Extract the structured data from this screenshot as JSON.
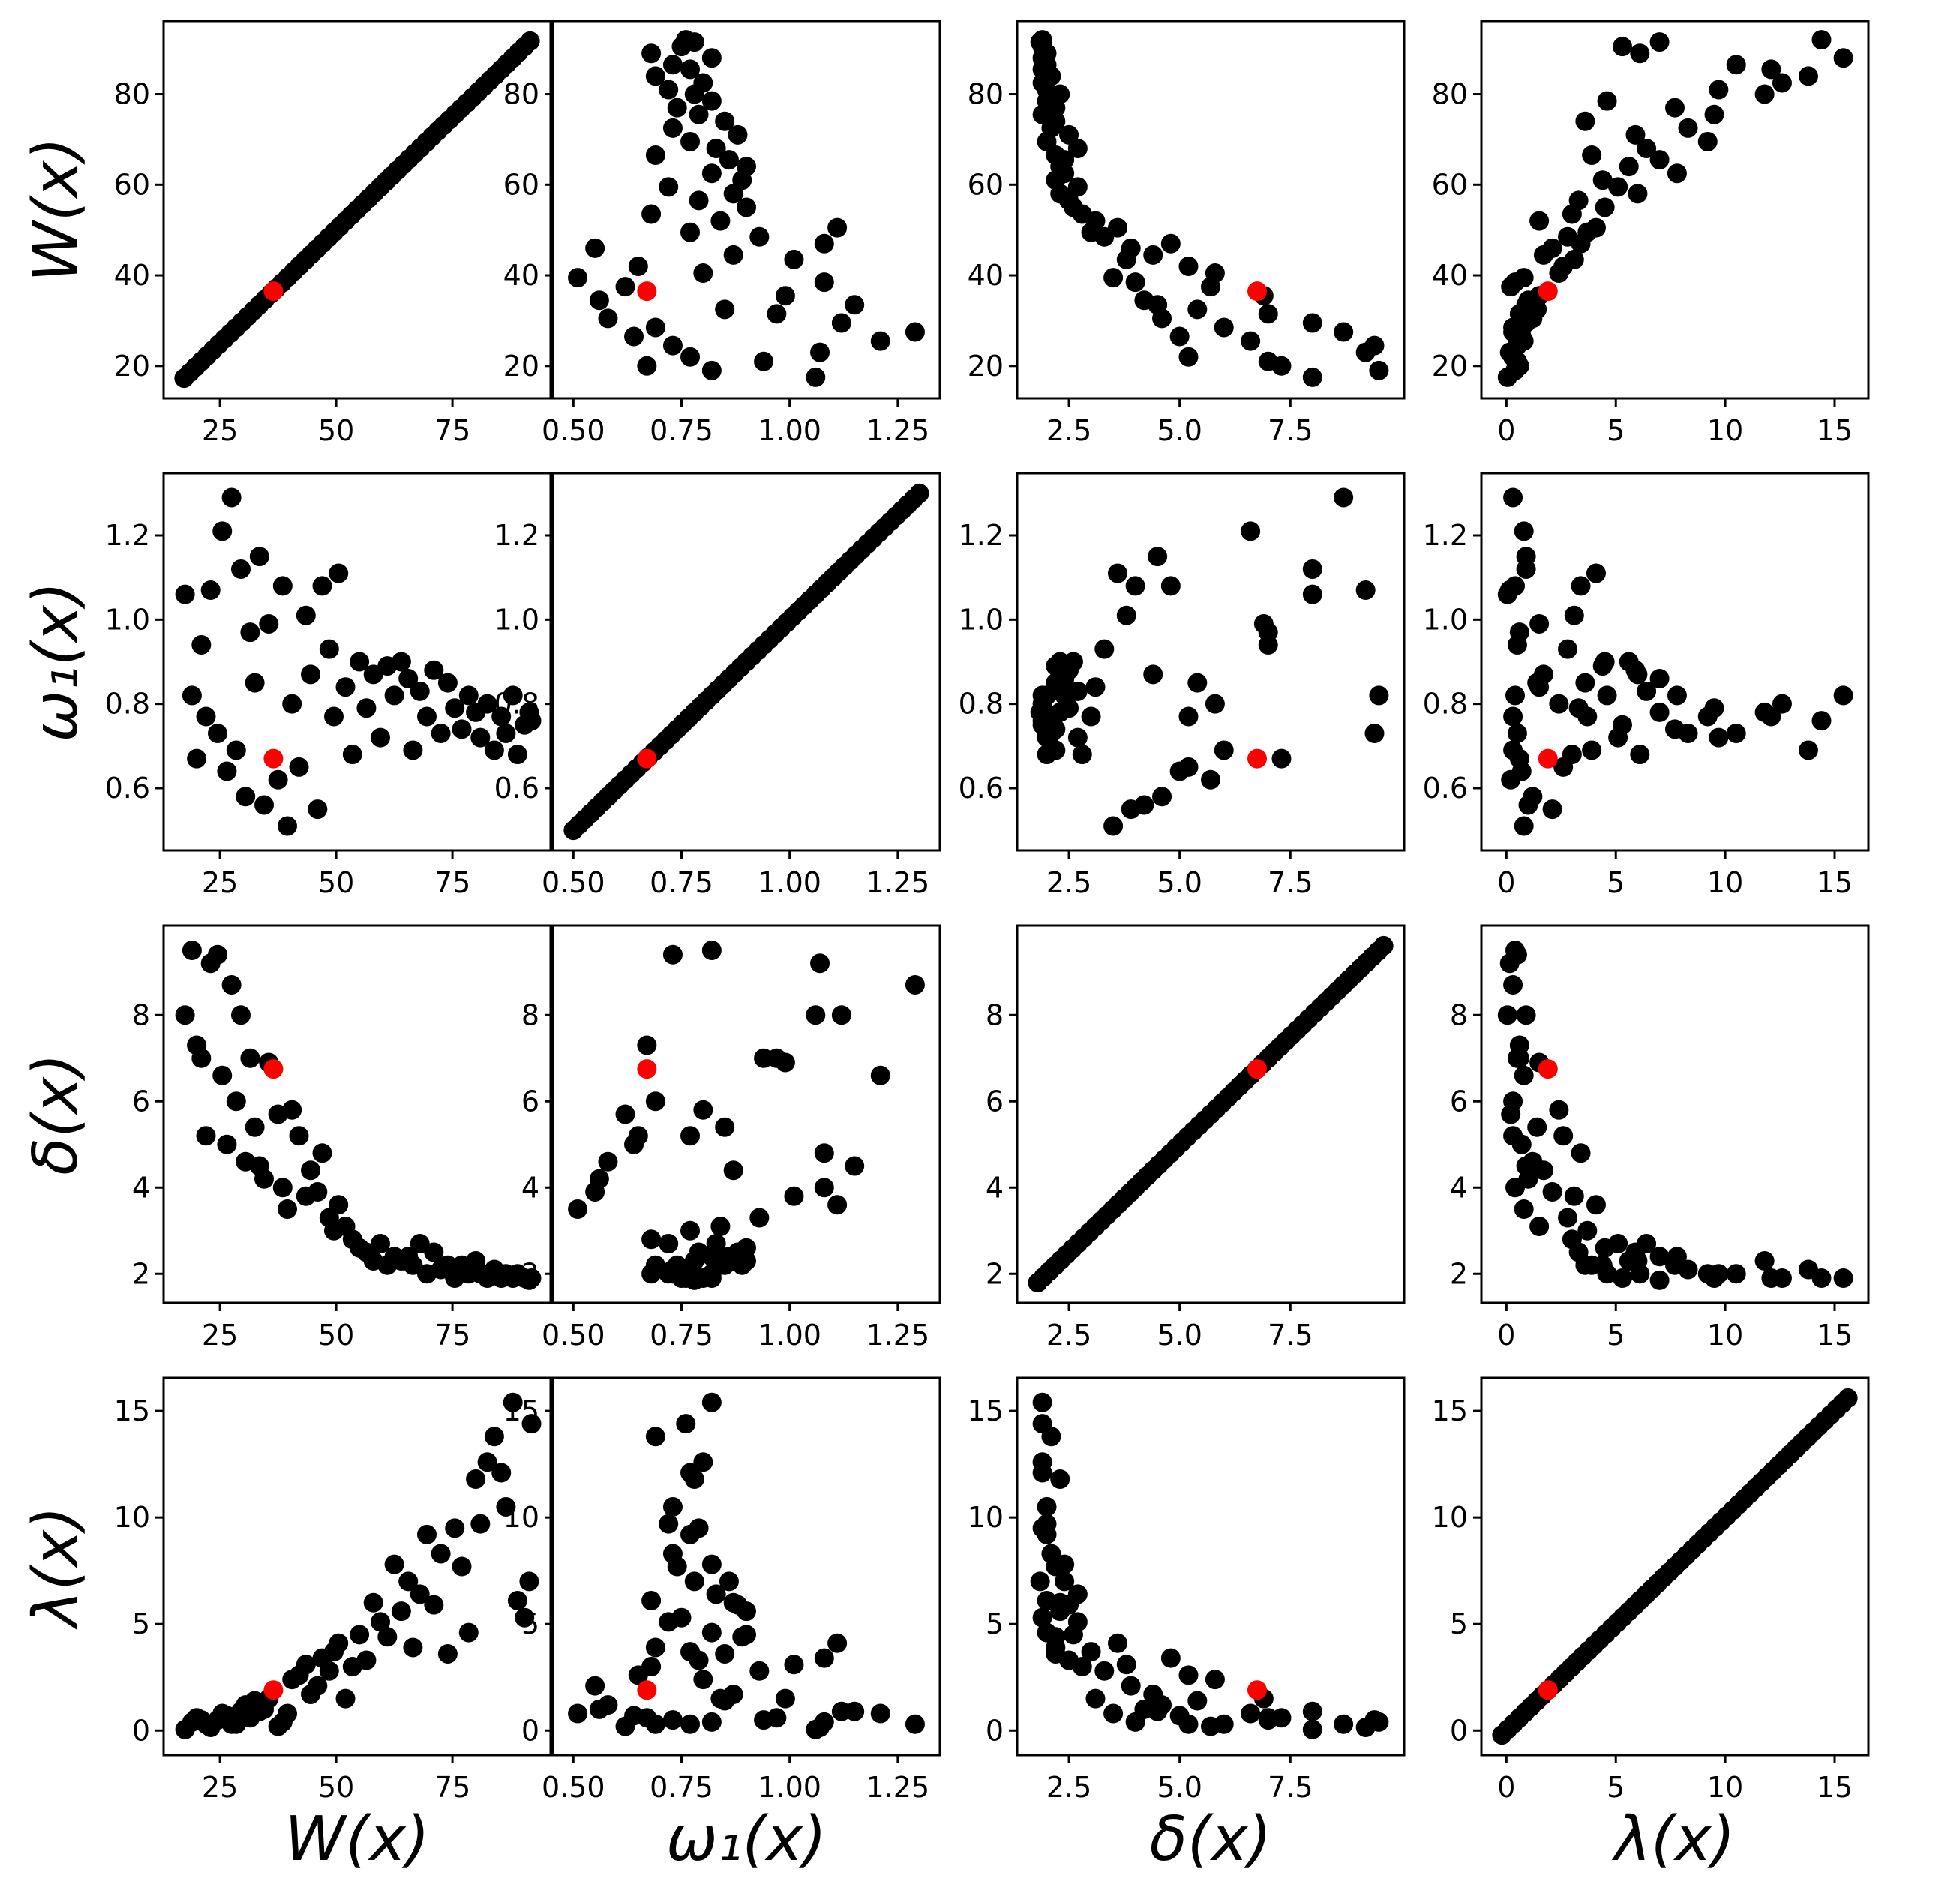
{
  "figure_title": "",
  "chart_data": {
    "type": "scatter",
    "layout": "4x4 pair plot (scatter matrix)",
    "variables": [
      {
        "key": "W",
        "label": "W(x)",
        "lim": [
          14.5,
          94.5
        ],
        "ticks": [
          20,
          40,
          60,
          80
        ],
        "tick_labels": [
          "20",
          "40",
          "60",
          "80"
        ],
        "x_ticks": [
          25,
          50,
          75
        ],
        "x_tick_labels": [
          "25",
          "50",
          "75"
        ]
      },
      {
        "key": "omega1",
        "label": "ω₁(x)",
        "lim": [
          0.47,
          1.33
        ],
        "ticks": [
          0.6,
          0.8,
          1.0,
          1.2
        ],
        "tick_labels": [
          "0.6",
          "0.8",
          "1.0",
          "1.2"
        ],
        "x_ticks": [
          0.5,
          0.75,
          1.0,
          1.25
        ],
        "x_tick_labels": [
          "0.50",
          "0.75",
          "1.00",
          "1.25"
        ]
      },
      {
        "key": "delta",
        "label": "δ(x)",
        "lim": [
          1.5,
          9.9
        ],
        "ticks": [
          2,
          4,
          6,
          8
        ],
        "tick_labels": [
          "2",
          "4",
          "6",
          "8"
        ],
        "x_ticks": [
          2.5,
          5.0,
          7.5
        ],
        "x_tick_labels": [
          "2.5",
          "5.0",
          "7.5"
        ]
      },
      {
        "key": "lambda",
        "label": "λ(x)",
        "lim": [
          -0.8,
          16.2
        ],
        "ticks": [
          0,
          5,
          10,
          15
        ],
        "tick_labels": [
          "0",
          "5",
          "10",
          "15"
        ],
        "x_ticks": [
          0,
          5,
          10,
          15
        ],
        "x_tick_labels": [
          "0",
          "5",
          "10",
          "15"
        ]
      }
    ],
    "series": [
      {
        "name": "samples",
        "color": "#000000"
      },
      {
        "name": "highlighted point",
        "color": "#ff0000",
        "point": {
          "W": 36.5,
          "omega1": 0.67,
          "delta": 6.75,
          "lambda": 1.9
        }
      }
    ],
    "samples": [
      [
        17.5,
        1.06,
        8.0,
        0.05
      ],
      [
        19.0,
        0.82,
        9.5,
        0.4
      ],
      [
        20.0,
        0.67,
        7.3,
        0.6
      ],
      [
        21.0,
        0.94,
        7.0,
        0.5
      ],
      [
        22.0,
        0.77,
        5.2,
        0.3
      ],
      [
        23.0,
        1.07,
        9.2,
        0.15
      ],
      [
        24.5,
        0.73,
        9.4,
        0.5
      ],
      [
        25.5,
        1.21,
        6.6,
        0.8
      ],
      [
        26.5,
        0.64,
        5.0,
        0.7
      ],
      [
        27.5,
        1.29,
        8.7,
        0.3
      ],
      [
        28.5,
        0.69,
        6.0,
        0.3
      ],
      [
        29.5,
        1.12,
        8.0,
        0.9
      ],
      [
        30.5,
        0.58,
        4.6,
        1.2
      ],
      [
        31.5,
        0.97,
        7.0,
        0.6
      ],
      [
        32.5,
        0.85,
        5.4,
        1.4
      ],
      [
        33.5,
        1.15,
        4.5,
        0.9
      ],
      [
        34.5,
        0.56,
        4.2,
        1.0
      ],
      [
        35.5,
        0.99,
        6.9,
        1.5
      ],
      [
        37.5,
        0.62,
        5.7,
        0.2
      ],
      [
        38.5,
        1.08,
        4.0,
        0.4
      ],
      [
        39.5,
        0.51,
        3.5,
        0.8
      ],
      [
        40.5,
        0.8,
        5.8,
        2.4
      ],
      [
        42.0,
        0.65,
        5.2,
        2.6
      ],
      [
        43.5,
        1.01,
        3.8,
        3.1
      ],
      [
        44.5,
        0.87,
        4.4,
        1.7
      ],
      [
        46.0,
        0.55,
        3.9,
        2.1
      ],
      [
        47.0,
        1.08,
        4.8,
        3.4
      ],
      [
        48.5,
        0.93,
        3.3,
        2.8
      ],
      [
        49.5,
        0.77,
        3.0,
        3.7
      ],
      [
        50.5,
        1.11,
        3.6,
        4.1
      ],
      [
        52.0,
        0.84,
        3.1,
        1.5
      ],
      [
        53.5,
        0.68,
        2.8,
        3.0
      ],
      [
        55.0,
        0.9,
        2.6,
        4.5
      ],
      [
        56.5,
        0.79,
        2.5,
        3.3
      ],
      [
        58.0,
        0.87,
        2.3,
        6.0
      ],
      [
        59.5,
        0.72,
        2.7,
        5.1
      ],
      [
        61.0,
        0.89,
        2.2,
        4.4
      ],
      [
        62.5,
        0.82,
        2.4,
        7.8
      ],
      [
        64.0,
        0.9,
        2.3,
        5.6
      ],
      [
        65.5,
        0.86,
        2.4,
        7.0
      ],
      [
        66.5,
        0.69,
        2.2,
        3.9
      ],
      [
        68.0,
        0.83,
        2.7,
        6.4
      ],
      [
        69.5,
        0.77,
        2.0,
        9.2
      ],
      [
        71.0,
        0.88,
        2.5,
        5.9
      ],
      [
        72.5,
        0.73,
        2.1,
        8.3
      ],
      [
        74.0,
        0.85,
        2.2,
        3.6
      ],
      [
        75.5,
        0.79,
        1.9,
        9.5
      ],
      [
        77.0,
        0.74,
        2.2,
        7.7
      ],
      [
        78.5,
        0.82,
        2.0,
        4.6
      ],
      [
        80.0,
        0.78,
        2.3,
        11.8
      ],
      [
        81.0,
        0.72,
        2.0,
        9.7
      ],
      [
        82.5,
        0.8,
        1.9,
        12.6
      ],
      [
        84.0,
        0.69,
        2.1,
        13.8
      ],
      [
        85.5,
        0.77,
        1.9,
        12.1
      ],
      [
        86.5,
        0.73,
        2.0,
        10.5
      ],
      [
        88.0,
        0.82,
        1.9,
        15.4
      ],
      [
        89.0,
        0.68,
        2.0,
        6.1
      ],
      [
        90.5,
        0.75,
        1.9,
        5.3
      ],
      [
        91.5,
        0.78,
        1.85,
        7.0
      ],
      [
        92.0,
        0.76,
        1.9,
        14.4
      ]
    ],
    "x_axis_labels": [
      "W(x)",
      "ω₁(x)",
      "δ(x)",
      "λ(x)"
    ],
    "y_axis_labels": [
      "W(x)",
      "ω₁(x)",
      "δ(x)",
      "λ(x)"
    ],
    "grid": false,
    "legend": "none"
  }
}
